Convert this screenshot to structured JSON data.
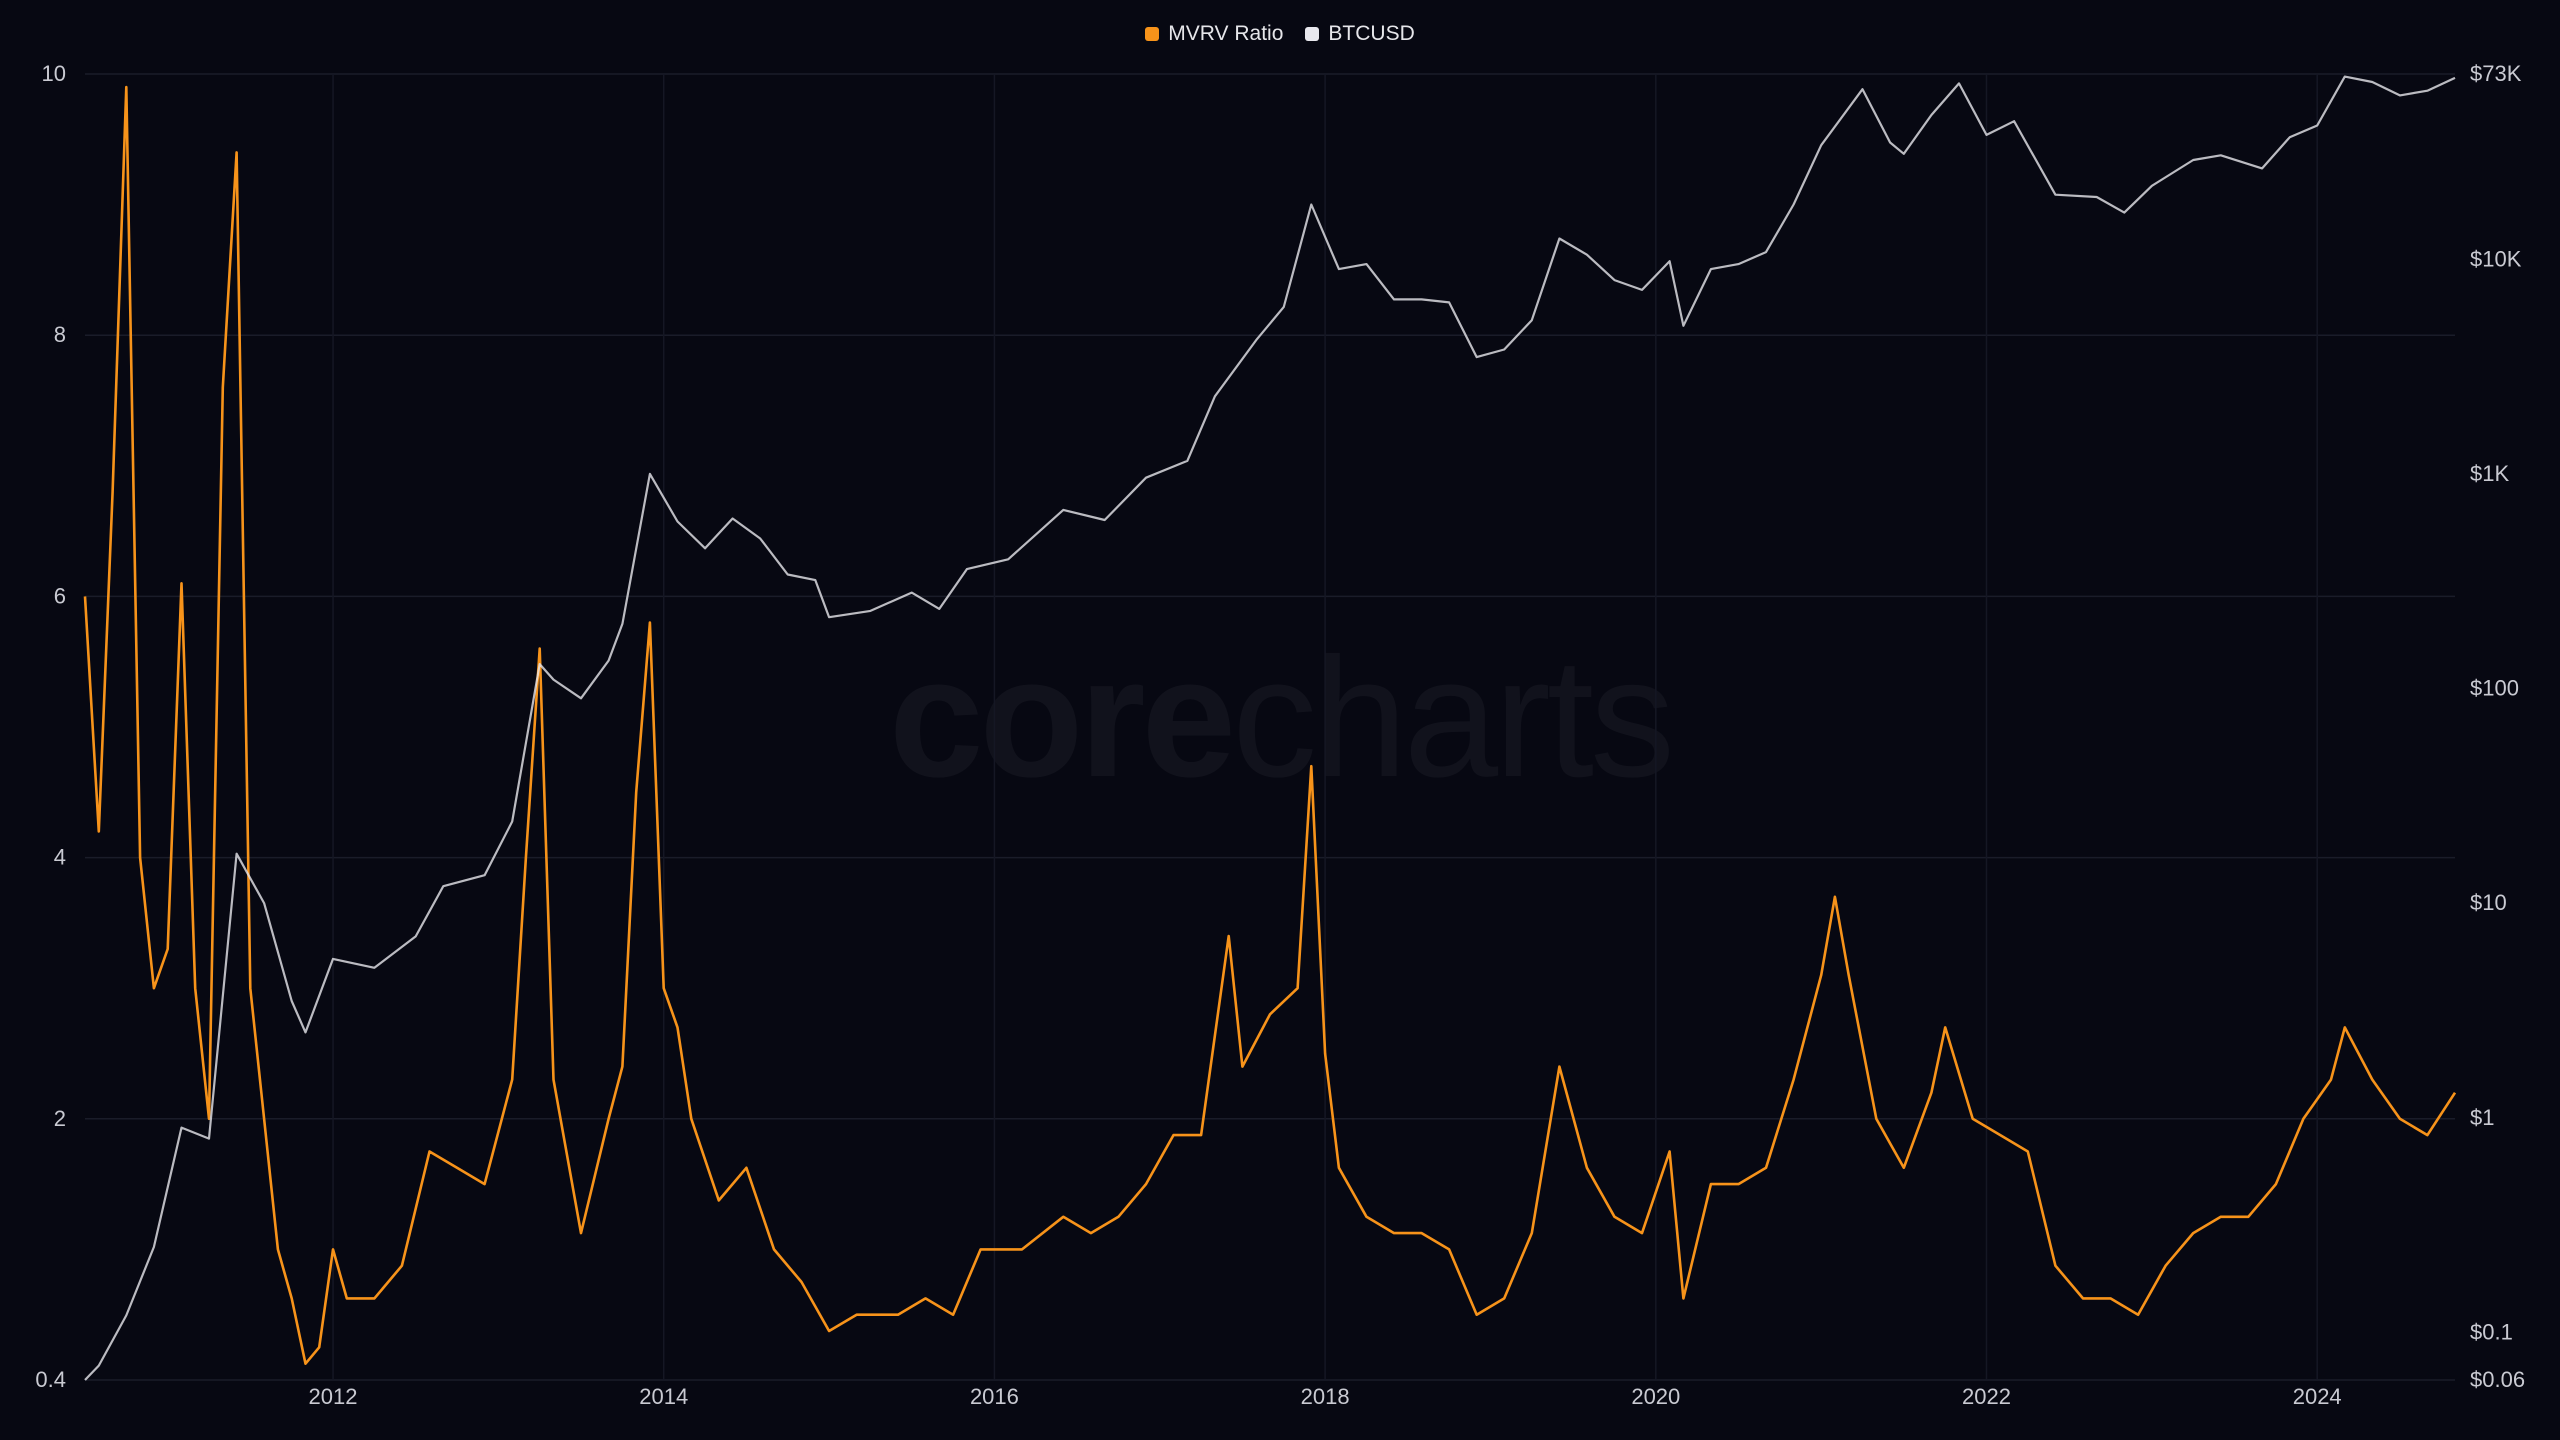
{
  "watermark": {
    "left": "core",
    "right": "charts"
  },
  "legend": [
    {
      "label": "MVRV Ratio",
      "color": "#f7931a"
    },
    {
      "label": "BTCUSD",
      "color": "#e8e8ee"
    }
  ],
  "chart_data": {
    "type": "line",
    "title": "",
    "xlabel": "",
    "x_ticks": [
      "2012",
      "2014",
      "2016",
      "2018",
      "2020",
      "2022",
      "2024"
    ],
    "left_axis": {
      "label": "",
      "ticks": [
        "10",
        "8",
        "6",
        "4",
        "2",
        "0.4"
      ],
      "range": [
        0.4,
        10
      ]
    },
    "right_axis": {
      "label": "",
      "scale": "log",
      "ticks": [
        "$73K",
        "$10K",
        "$1K",
        "$100",
        "$10",
        "$1",
        "$0.1",
        "$0.06"
      ],
      "range": [
        0.06,
        73000
      ]
    },
    "grid": true,
    "legend_position": "top-center",
    "x_range": [
      "2010-07",
      "2024-11"
    ],
    "series": [
      {
        "name": "MVRV Ratio",
        "axis": "left",
        "color": "#f7931a",
        "points": [
          [
            "2010-07",
            6.0
          ],
          [
            "2010-08",
            4.2
          ],
          [
            "2010-09",
            6.8
          ],
          [
            "2010-10",
            9.9
          ],
          [
            "2010-11",
            4.0
          ],
          [
            "2010-12",
            3.0
          ],
          [
            "2011-01",
            3.3
          ],
          [
            "2011-02",
            6.1
          ],
          [
            "2011-03",
            3.0
          ],
          [
            "2011-04",
            2.0
          ],
          [
            "2011-05",
            7.6
          ],
          [
            "2011-06",
            9.4
          ],
          [
            "2011-07",
            3.0
          ],
          [
            "2011-08",
            2.0
          ],
          [
            "2011-09",
            1.2
          ],
          [
            "2011-10",
            0.9
          ],
          [
            "2011-11",
            0.5
          ],
          [
            "2011-12",
            0.6
          ],
          [
            "2012-01",
            1.2
          ],
          [
            "2012-02",
            0.9
          ],
          [
            "2012-04",
            0.9
          ],
          [
            "2012-06",
            1.1
          ],
          [
            "2012-08",
            1.8
          ],
          [
            "2012-10",
            1.7
          ],
          [
            "2012-12",
            1.6
          ],
          [
            "2013-02",
            2.3
          ],
          [
            "2013-03",
            4.0
          ],
          [
            "2013-04",
            5.6
          ],
          [
            "2013-05",
            2.3
          ],
          [
            "2013-07",
            1.3
          ],
          [
            "2013-09",
            2.0
          ],
          [
            "2013-10",
            2.4
          ],
          [
            "2013-11",
            4.5
          ],
          [
            "2013-12",
            5.8
          ],
          [
            "2014-01",
            3.0
          ],
          [
            "2014-02",
            2.7
          ],
          [
            "2014-03",
            2.0
          ],
          [
            "2014-05",
            1.5
          ],
          [
            "2014-07",
            1.7
          ],
          [
            "2014-09",
            1.2
          ],
          [
            "2014-11",
            1.0
          ],
          [
            "2015-01",
            0.7
          ],
          [
            "2015-03",
            0.8
          ],
          [
            "2015-06",
            0.8
          ],
          [
            "2015-08",
            0.9
          ],
          [
            "2015-10",
            0.8
          ],
          [
            "2015-12",
            1.2
          ],
          [
            "2016-03",
            1.2
          ],
          [
            "2016-06",
            1.4
          ],
          [
            "2016-08",
            1.3
          ],
          [
            "2016-10",
            1.4
          ],
          [
            "2016-12",
            1.6
          ],
          [
            "2017-02",
            1.9
          ],
          [
            "2017-04",
            1.9
          ],
          [
            "2017-06",
            3.4
          ],
          [
            "2017-07",
            2.4
          ],
          [
            "2017-09",
            2.8
          ],
          [
            "2017-11",
            3.0
          ],
          [
            "2017-12",
            4.7
          ],
          [
            "2018-01",
            2.5
          ],
          [
            "2018-02",
            1.7
          ],
          [
            "2018-04",
            1.4
          ],
          [
            "2018-06",
            1.3
          ],
          [
            "2018-08",
            1.3
          ],
          [
            "2018-10",
            1.2
          ],
          [
            "2018-12",
            0.8
          ],
          [
            "2019-02",
            0.9
          ],
          [
            "2019-04",
            1.3
          ],
          [
            "2019-06",
            2.4
          ],
          [
            "2019-08",
            1.7
          ],
          [
            "2019-10",
            1.4
          ],
          [
            "2019-12",
            1.3
          ],
          [
            "2020-02",
            1.8
          ],
          [
            "2020-03",
            0.9
          ],
          [
            "2020-05",
            1.6
          ],
          [
            "2020-07",
            1.6
          ],
          [
            "2020-09",
            1.7
          ],
          [
            "2020-11",
            2.3
          ],
          [
            "2021-01",
            3.1
          ],
          [
            "2021-02",
            3.7
          ],
          [
            "2021-03",
            3.1
          ],
          [
            "2021-05",
            2.0
          ],
          [
            "2021-07",
            1.7
          ],
          [
            "2021-09",
            2.2
          ],
          [
            "2021-10",
            2.7
          ],
          [
            "2021-12",
            2.0
          ],
          [
            "2022-02",
            1.9
          ],
          [
            "2022-04",
            1.8
          ],
          [
            "2022-06",
            1.1
          ],
          [
            "2022-08",
            0.9
          ],
          [
            "2022-10",
            0.9
          ],
          [
            "2022-12",
            0.8
          ],
          [
            "2023-02",
            1.1
          ],
          [
            "2023-04",
            1.3
          ],
          [
            "2023-06",
            1.4
          ],
          [
            "2023-08",
            1.4
          ],
          [
            "2023-10",
            1.6
          ],
          [
            "2023-12",
            2.0
          ],
          [
            "2024-02",
            2.3
          ],
          [
            "2024-03",
            2.7
          ],
          [
            "2024-05",
            2.3
          ],
          [
            "2024-07",
            2.0
          ],
          [
            "2024-09",
            1.9
          ],
          [
            "2024-11",
            2.2
          ]
        ]
      },
      {
        "name": "BTCUSD",
        "axis": "right",
        "color": "#e8e8ee",
        "points": [
          [
            "2010-07",
            0.06
          ],
          [
            "2010-08",
            0.07
          ],
          [
            "2010-10",
            0.12
          ],
          [
            "2010-12",
            0.25
          ],
          [
            "2011-02",
            0.9
          ],
          [
            "2011-04",
            0.8
          ],
          [
            "2011-06",
            17
          ],
          [
            "2011-08",
            10
          ],
          [
            "2011-10",
            3.5
          ],
          [
            "2011-11",
            2.5
          ],
          [
            "2012-01",
            5.5
          ],
          [
            "2012-04",
            5
          ],
          [
            "2012-07",
            7
          ],
          [
            "2012-09",
            12
          ],
          [
            "2012-12",
            13.5
          ],
          [
            "2013-02",
            24
          ],
          [
            "2013-04",
            130
          ],
          [
            "2013-05",
            110
          ],
          [
            "2013-07",
            90
          ],
          [
            "2013-09",
            135
          ],
          [
            "2013-10",
            200
          ],
          [
            "2013-12",
            1000
          ],
          [
            "2014-02",
            600
          ],
          [
            "2014-04",
            450
          ],
          [
            "2014-06",
            620
          ],
          [
            "2014-08",
            500
          ],
          [
            "2014-10",
            340
          ],
          [
            "2014-12",
            320
          ],
          [
            "2015-01",
            215
          ],
          [
            "2015-04",
            230
          ],
          [
            "2015-07",
            280
          ],
          [
            "2015-09",
            235
          ],
          [
            "2015-11",
            360
          ],
          [
            "2016-02",
            400
          ],
          [
            "2016-06",
            680
          ],
          [
            "2016-09",
            610
          ],
          [
            "2016-12",
            960
          ],
          [
            "2017-03",
            1150
          ],
          [
            "2017-05",
            2300
          ],
          [
            "2017-08",
            4200
          ],
          [
            "2017-10",
            6000
          ],
          [
            "2017-12",
            18000
          ],
          [
            "2018-02",
            9000
          ],
          [
            "2018-04",
            9500
          ],
          [
            "2018-06",
            6500
          ],
          [
            "2018-08",
            6500
          ],
          [
            "2018-10",
            6300
          ],
          [
            "2018-12",
            3500
          ],
          [
            "2019-02",
            3800
          ],
          [
            "2019-04",
            5200
          ],
          [
            "2019-06",
            12500
          ],
          [
            "2019-08",
            10500
          ],
          [
            "2019-10",
            8000
          ],
          [
            "2019-12",
            7200
          ],
          [
            "2020-02",
            9800
          ],
          [
            "2020-03",
            4900
          ],
          [
            "2020-05",
            9000
          ],
          [
            "2020-07",
            9500
          ],
          [
            "2020-09",
            10800
          ],
          [
            "2020-11",
            18000
          ],
          [
            "2021-01",
            34000
          ],
          [
            "2021-04",
            62000
          ],
          [
            "2021-06",
            35000
          ],
          [
            "2021-07",
            31000
          ],
          [
            "2021-09",
            47000
          ],
          [
            "2021-11",
            66000
          ],
          [
            "2022-01",
            38000
          ],
          [
            "2022-03",
            44000
          ],
          [
            "2022-06",
            20000
          ],
          [
            "2022-09",
            19500
          ],
          [
            "2022-11",
            16500
          ],
          [
            "2023-01",
            22000
          ],
          [
            "2023-04",
            29000
          ],
          [
            "2023-06",
            30500
          ],
          [
            "2023-09",
            26500
          ],
          [
            "2023-11",
            37000
          ],
          [
            "2024-01",
            42000
          ],
          [
            "2024-03",
            71000
          ],
          [
            "2024-05",
            67000
          ],
          [
            "2024-07",
            58000
          ],
          [
            "2024-09",
            61000
          ],
          [
            "2024-11",
            70000
          ]
        ]
      }
    ]
  }
}
